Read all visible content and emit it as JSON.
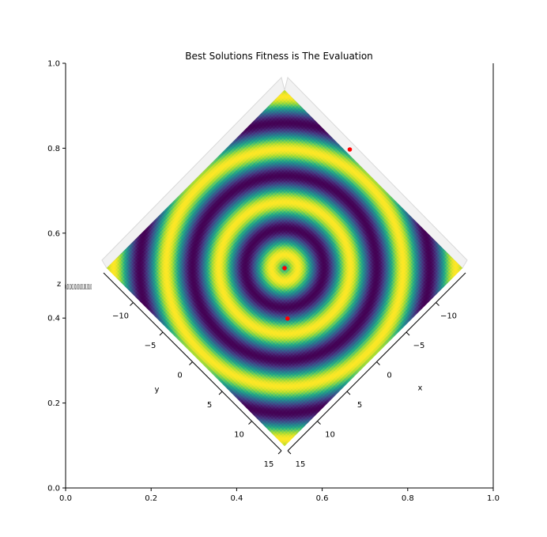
{
  "chart_data": {
    "type": "surface3d",
    "title": "Best Solutions Fitness is The Evaluation",
    "colormap": "viridis",
    "surface_function": "concentric rings (sin of radial distance)",
    "frame_axes": {
      "x_ticks": [
        "0.0",
        "0.2",
        "0.4",
        "0.6",
        "0.8",
        "1.0"
      ],
      "y_ticks": [
        "0.0",
        "0.2",
        "0.4",
        "0.6",
        "0.8",
        "1.0"
      ],
      "xlim": [
        0,
        1
      ],
      "ylim": [
        0,
        1
      ]
    },
    "axis3d": {
      "x": {
        "label": "x",
        "ticks": [
          -10,
          -5,
          0,
          5,
          10,
          15
        ],
        "range": [
          -15,
          15
        ]
      },
      "y": {
        "label": "y",
        "ticks": [
          -10,
          -5,
          0,
          5,
          10,
          15
        ],
        "range": [
          -15,
          15
        ]
      },
      "z": {
        "label": "z",
        "tick_text": "0.00.00.00.00.00.00.00.0"
      }
    },
    "best_points": [
      {
        "x": 0.0,
        "y": 0.0,
        "color": "#ff0000"
      },
      {
        "x": 4.0,
        "y": 4.5,
        "color": "#ff0000"
      },
      {
        "x": -15.5,
        "y": -4.5,
        "color": "#ff0000"
      }
    ],
    "colors": {
      "points": "#ff0000",
      "grid": "#d9d9d9",
      "pane": "#f2f2f2"
    }
  }
}
